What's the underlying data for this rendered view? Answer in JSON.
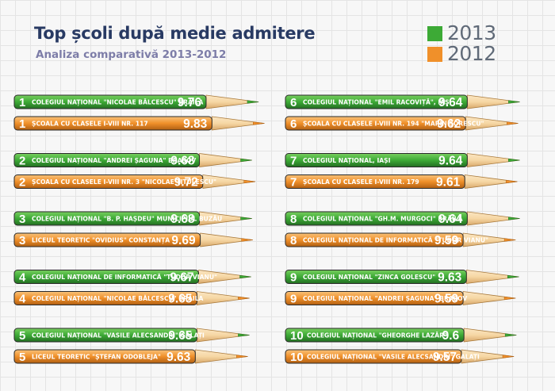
{
  "header": {
    "title": "Top școli după medie admitere",
    "subtitle": "Analiza comparativă 2013-2012"
  },
  "legend": [
    {
      "year": "2013",
      "color": "#3daa36"
    },
    {
      "year": "2012",
      "color": "#f0902a"
    }
  ],
  "colors": {
    "green": "#3daa36",
    "green_light": "#78cf5f",
    "green_dark": "#236e22",
    "orange": "#f0902a",
    "orange_light": "#f8c27a",
    "orange_dark": "#b05f12",
    "wood": "#f6d7a4",
    "wood_dark": "#d8a86a"
  },
  "chart_data": {
    "type": "bar",
    "title": "Top școli după medie admitere",
    "subtitle": "Analiza comparativă 2013-2012",
    "series": [
      {
        "name": "2013",
        "items": [
          {
            "rank": "1",
            "school": "COLEGIUL NAȚIONAL \"NICOLAE BĂLCESCU\" BRĂILA",
            "value": "9.76"
          },
          {
            "rank": "2",
            "school": "COLEGIUL NAȚIONAL \"ANDREI ȘAGUNA\" BRAȘOV",
            "value": "9.68"
          },
          {
            "rank": "3",
            "school": "COLEGIUL NAȚIONAL \"B. P. HAȘDEU\" MUNICIPIUL BUZĂU",
            "value": "9.68"
          },
          {
            "rank": "4",
            "school": "COLEGIUL NAȚIONAL DE INFORMATICĂ \"TUDOR VIANU\"",
            "value": "9.67"
          },
          {
            "rank": "5",
            "school": "COLEGIUL NAȚIONAL \"VASILE ALECSANDRI\" GALAȚI",
            "value": "9.65"
          },
          {
            "rank": "6",
            "school": "COLEGIUL NAȚIONAL \"EMIL RACOVIȚĂ\", IAȘI",
            "value": "9.64"
          },
          {
            "rank": "7",
            "school": "COLEGIUL NAȚIONAL, IAȘI",
            "value": "9.64"
          },
          {
            "rank": "8",
            "school": "COLEGIUL NAȚIONAL \"GH.M. MURGOCI\" BRĂILA",
            "value": "9.64"
          },
          {
            "rank": "9",
            "school": "COLEGIUL NAȚIONAL \"ZINCA GOLESCU\"",
            "value": "9.63"
          },
          {
            "rank": "10",
            "school": "COLEGIUL NAȚIONAL \"GHEORGHE LAZĂR\"",
            "value": "9.6"
          }
        ]
      },
      {
        "name": "2012",
        "items": [
          {
            "rank": "1",
            "school": "ȘCOALA CU CLASELE I-VIII NR. 117",
            "value": "9.83"
          },
          {
            "rank": "2",
            "school": "ȘCOALA CU CLASELE I-VIII NR. 3 \"NICOLAE TITULESCU\"",
            "value": "9.72"
          },
          {
            "rank": "3",
            "school": "LICEUL TEORETIC \"OVIDIUS\" CONSTANȚA",
            "value": "9.69"
          },
          {
            "rank": "4",
            "school": "COLEGIUL NAȚIONAL \"NICOLAE BĂLCESCU\" BRĂILA",
            "value": "9.65"
          },
          {
            "rank": "5",
            "school": "LICEUL TEORETIC \"ȘTEFAN ODOBLEJA\"",
            "value": "9.63"
          },
          {
            "rank": "6",
            "school": "ȘCOALA CU CLASELE I-VIII NR. 194 \"MARIN SORESCU\"",
            "value": "9.62"
          },
          {
            "rank": "7",
            "school": "ȘCOALA CU CLASELE I-VIII NR. 179",
            "value": "9.61"
          },
          {
            "rank": "8",
            "school": "COLEGIUL NAȚIONAL DE INFORMATICĂ \"TUDOR VIANU\"",
            "value": "9.59"
          },
          {
            "rank": "9",
            "school": "COLEGIUL NAȚIONAL \"ANDREI ȘAGUNA\" BRAȘOV",
            "value": "9.59"
          },
          {
            "rank": "10",
            "school": "COLEGIUL NAȚIONAL \"VASILE ALECSANDRI\" GALAȚI",
            "value": "9.57"
          }
        ]
      }
    ]
  }
}
